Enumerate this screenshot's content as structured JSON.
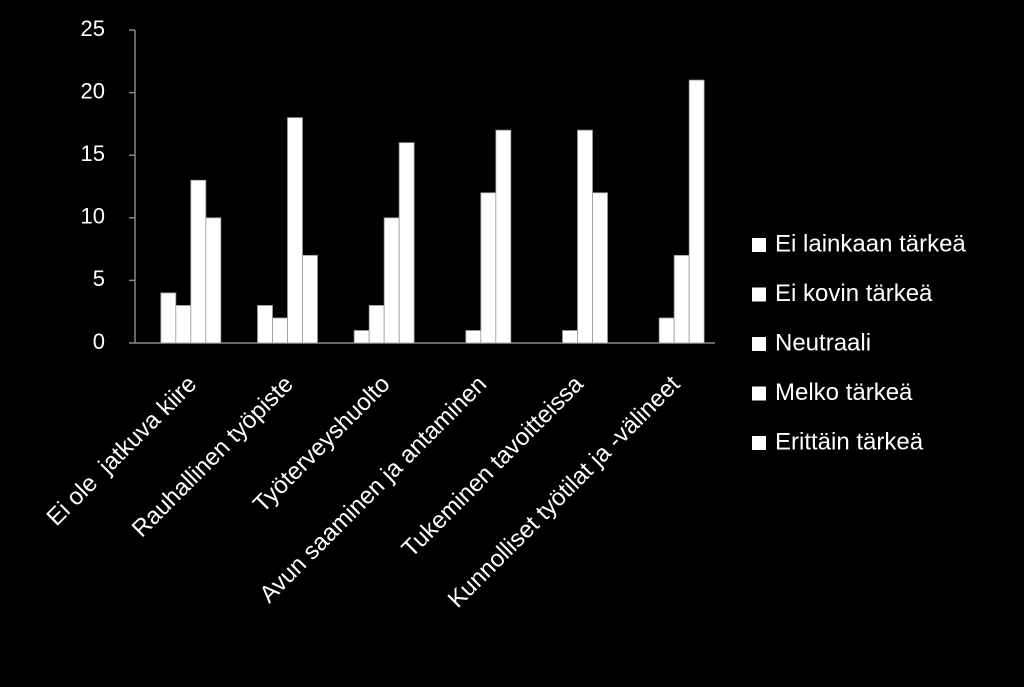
{
  "chart_data": {
    "type": "bar",
    "categories": [
      "Ei ole  jatkuva kiire",
      "Rauhallinen työpiste",
      "Työterveyshuolto",
      "Avun saaminen ja antaminen",
      "Tukeminen tavoitteissa",
      "Kunnolliset työtilat ja -välineet"
    ],
    "series": [
      {
        "name": "Ei lainkaan tärkeä",
        "color": "#ffffff",
        "values": [
          0,
          0,
          0,
          0,
          0,
          0
        ]
      },
      {
        "name": "Ei kovin tärkeä",
        "color": "#ffffff",
        "values": [
          4,
          3,
          1,
          0,
          0,
          0
        ]
      },
      {
        "name": "Neutraali",
        "color": "#ffffff",
        "values": [
          3,
          2,
          3,
          1,
          1,
          2
        ]
      },
      {
        "name": "Melko tärkeä",
        "color": "#ffffff",
        "values": [
          13,
          18,
          10,
          12,
          17,
          7
        ]
      },
      {
        "name": "Erittäin tärkeä",
        "color": "#ffffff",
        "values": [
          10,
          7,
          16,
          17,
          12,
          21
        ]
      }
    ],
    "ylim": [
      0,
      25
    ],
    "yticks": [
      0,
      5,
      10,
      15,
      20,
      25
    ],
    "grid": false,
    "legend": "right"
  }
}
